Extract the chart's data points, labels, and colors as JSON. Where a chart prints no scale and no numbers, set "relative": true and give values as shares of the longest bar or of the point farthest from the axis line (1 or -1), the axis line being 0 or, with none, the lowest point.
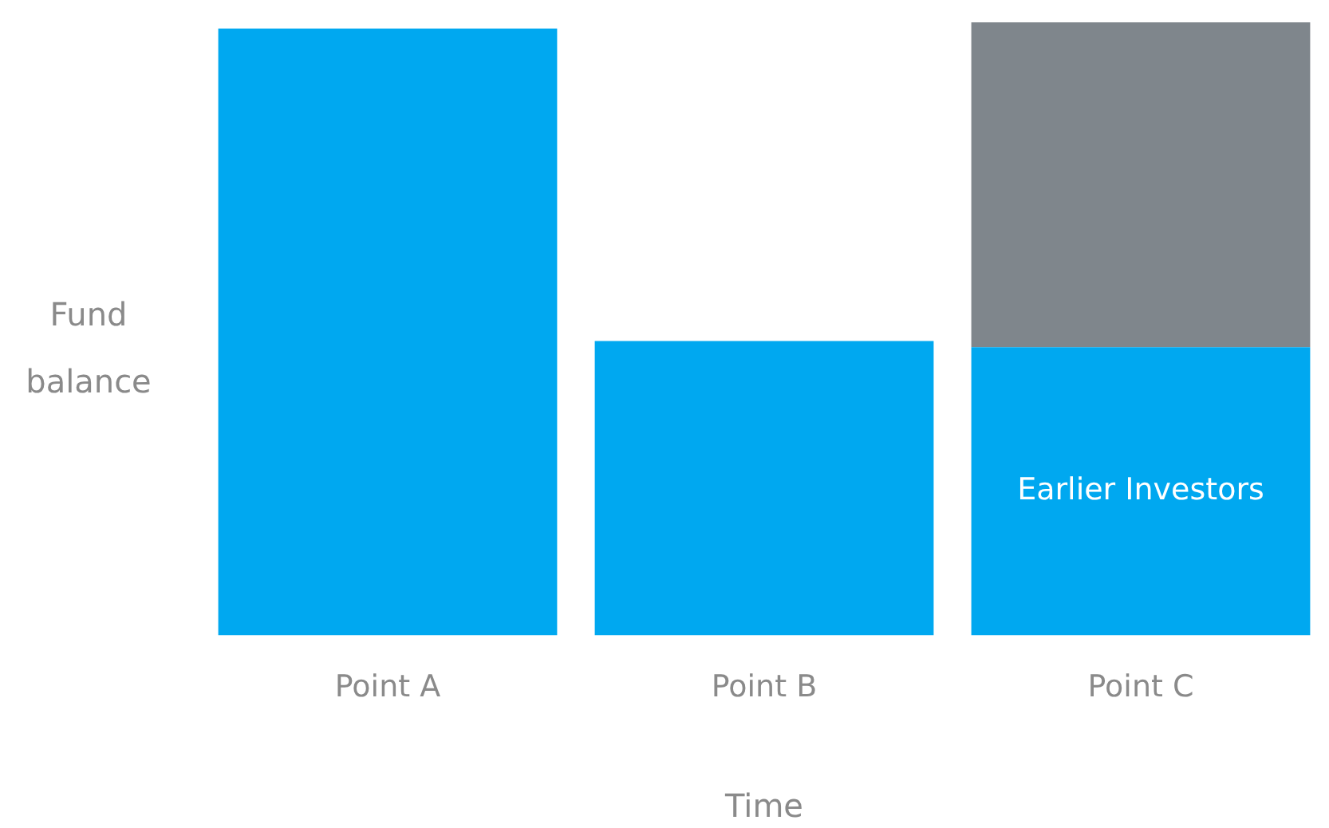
{
  "chart_data": {
    "type": "bar",
    "relative": true,
    "stacked": true,
    "xlabel": "Time",
    "ylabel": "Fund balance",
    "categories": [
      "Point A",
      "Point B",
      "Point C"
    ],
    "series": [
      {
        "name": "Earlier Investors",
        "color": "#00a8f0",
        "values": [
          0.99,
          0.48,
          0.47
        ]
      },
      {
        "color": "#7f868c",
        "values": [
          null,
          null,
          0.53
        ]
      }
    ],
    "grid": false,
    "legend": false
  }
}
